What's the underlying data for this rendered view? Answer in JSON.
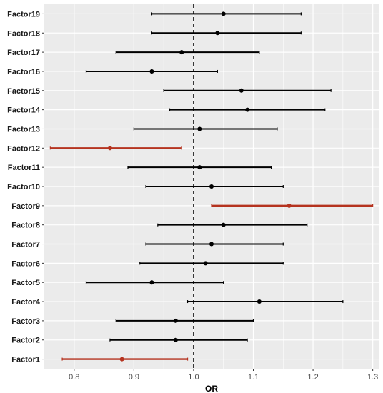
{
  "chart_data": {
    "type": "forest",
    "xlabel": "OR",
    "ylabel": "",
    "xlim": [
      0.75,
      1.31
    ],
    "xticks": [
      0.8,
      0.9,
      1.0,
      1.1,
      1.2,
      1.3
    ],
    "xtick_labels": [
      "0.8",
      "0.9",
      "1.0",
      "1.1",
      "1.2",
      "1.3"
    ],
    "reference_line": 1.0,
    "grid": true,
    "colors": {
      "panel": "#ebebeb",
      "grid": "#ffffff",
      "normal": "#000000",
      "highlight": "#b5331f"
    },
    "factors": [
      {
        "label": "Factor19",
        "or": 1.05,
        "lower": 0.93,
        "upper": 1.18,
        "highlight": false
      },
      {
        "label": "Factor18",
        "or": 1.04,
        "lower": 0.93,
        "upper": 1.18,
        "highlight": false
      },
      {
        "label": "Factor17",
        "or": 0.98,
        "lower": 0.87,
        "upper": 1.11,
        "highlight": false
      },
      {
        "label": "Factor16",
        "or": 0.93,
        "lower": 0.82,
        "upper": 1.04,
        "highlight": false
      },
      {
        "label": "Factor15",
        "or": 1.08,
        "lower": 0.95,
        "upper": 1.23,
        "highlight": false
      },
      {
        "label": "Factor14",
        "or": 1.09,
        "lower": 0.96,
        "upper": 1.22,
        "highlight": false
      },
      {
        "label": "Factor13",
        "or": 1.01,
        "lower": 0.9,
        "upper": 1.14,
        "highlight": false
      },
      {
        "label": "Factor12",
        "or": 0.86,
        "lower": 0.76,
        "upper": 0.98,
        "highlight": true
      },
      {
        "label": "Factor11",
        "or": 1.01,
        "lower": 0.89,
        "upper": 1.13,
        "highlight": false
      },
      {
        "label": "Factor10",
        "or": 1.03,
        "lower": 0.92,
        "upper": 1.15,
        "highlight": false
      },
      {
        "label": "Factor9",
        "or": 1.16,
        "lower": 1.03,
        "upper": 1.3,
        "highlight": true
      },
      {
        "label": "Factor8",
        "or": 1.05,
        "lower": 0.94,
        "upper": 1.19,
        "highlight": false
      },
      {
        "label": "Factor7",
        "or": 1.03,
        "lower": 0.92,
        "upper": 1.15,
        "highlight": false
      },
      {
        "label": "Factor6",
        "or": 1.02,
        "lower": 0.91,
        "upper": 1.15,
        "highlight": false
      },
      {
        "label": "Factor5",
        "or": 0.93,
        "lower": 0.82,
        "upper": 1.05,
        "highlight": false
      },
      {
        "label": "Factor4",
        "or": 1.11,
        "lower": 0.99,
        "upper": 1.25,
        "highlight": false
      },
      {
        "label": "Factor3",
        "or": 0.97,
        "lower": 0.87,
        "upper": 1.1,
        "highlight": false
      },
      {
        "label": "Factor2",
        "or": 0.97,
        "lower": 0.86,
        "upper": 1.09,
        "highlight": false
      },
      {
        "label": "Factor1",
        "or": 0.88,
        "lower": 0.78,
        "upper": 0.99,
        "highlight": true
      }
    ]
  }
}
